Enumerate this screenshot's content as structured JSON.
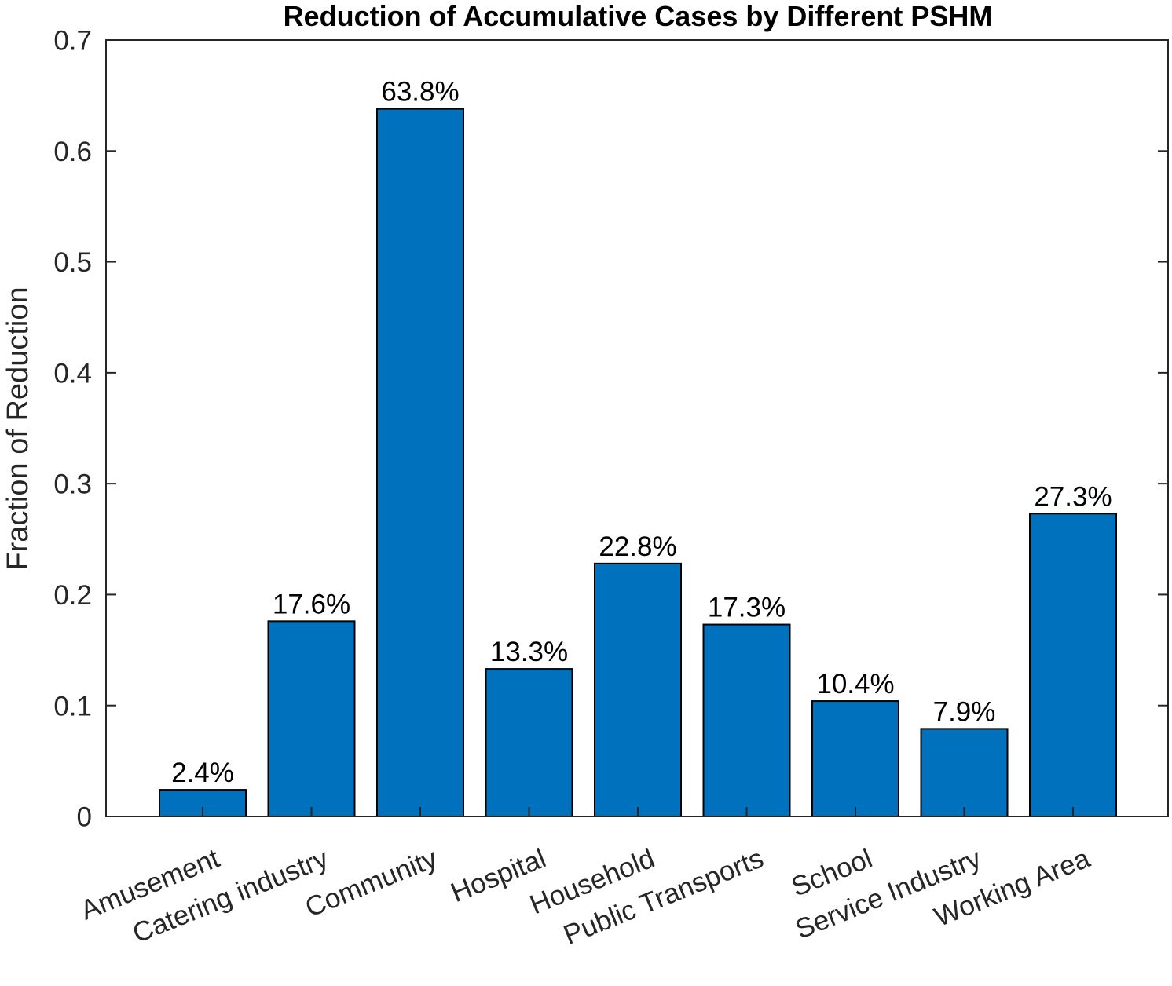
{
  "chart_data": {
    "type": "bar",
    "title": "Reduction of Accumulative Cases by Different PSHM",
    "ylabel": "Fraction of Reduction",
    "xlabel": "",
    "ylim": [
      0,
      0.7
    ],
    "yticks": [
      0,
      0.1,
      0.2,
      0.3,
      0.4,
      0.5,
      0.6,
      0.7
    ],
    "ytick_labels": [
      "0",
      "0.1",
      "0.2",
      "0.3",
      "0.4",
      "0.5",
      "0.6",
      "0.7"
    ],
    "categories": [
      "Amusement",
      "Catering industry",
      "Community",
      "Hospital",
      "Household",
      "Public Transports",
      "School",
      "Service Industry",
      "Working Area"
    ],
    "values": [
      0.024,
      0.176,
      0.638,
      0.133,
      0.228,
      0.173,
      0.104,
      0.079,
      0.273
    ],
    "data_labels": [
      "2.4%",
      "17.6%",
      "63.8%",
      "13.3%",
      "22.8%",
      "17.3%",
      "10.4%",
      "7.9%",
      "27.3%"
    ],
    "bar_color": "#0072BD",
    "grid": false,
    "box": true
  }
}
